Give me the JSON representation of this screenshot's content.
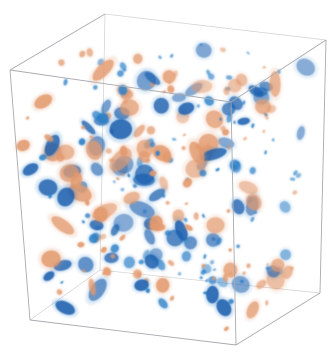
{
  "figure": {
    "kind": "3d-volume-render",
    "subject": "blobs-in-cube",
    "colors": {
      "background": "#ffffff",
      "cube_edge": "#a7aab0",
      "blue": "#2a7fc8",
      "blue_dark": "#1f5fae",
      "orange": "#e39a6e"
    }
  }
}
